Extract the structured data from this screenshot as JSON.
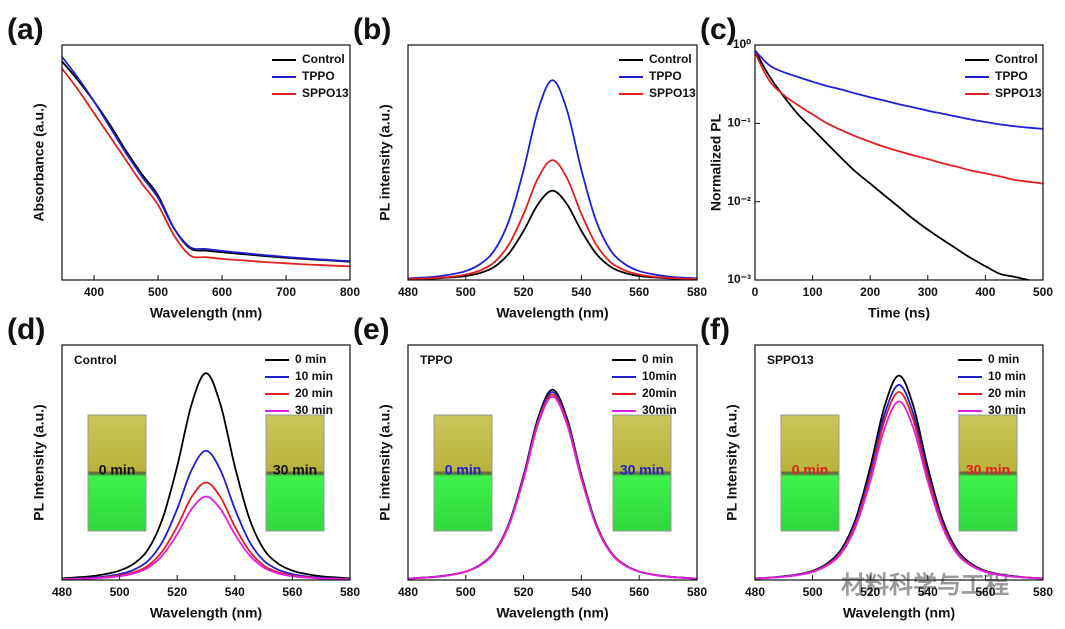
{
  "chart_data": [
    {
      "type": "line",
      "panel_label": "(a)",
      "x_label": "Wavelength (nm)",
      "y_label": "Absorbance (a.u.)",
      "x": [
        350,
        375,
        400,
        425,
        450,
        475,
        500,
        525,
        550,
        575,
        600,
        625,
        650,
        675,
        700,
        725,
        750,
        775,
        800
      ],
      "xlim": [
        350,
        800
      ],
      "xticks": [
        400,
        500,
        600,
        700,
        800
      ],
      "ylim": [
        0,
        1
      ],
      "series": [
        {
          "name": "Control",
          "color": "#000000",
          "values": [
            0.93,
            0.85,
            0.76,
            0.66,
            0.55,
            0.45,
            0.36,
            0.22,
            0.135,
            0.125,
            0.118,
            0.112,
            0.106,
            0.1,
            0.095,
            0.09,
            0.086,
            0.082,
            0.078
          ]
        },
        {
          "name": "TPPO",
          "color": "#1f1fd0",
          "values": [
            0.95,
            0.86,
            0.76,
            0.65,
            0.54,
            0.44,
            0.35,
            0.22,
            0.14,
            0.132,
            0.124,
            0.117,
            0.11,
            0.104,
            0.098,
            0.093,
            0.088,
            0.084,
            0.08
          ]
        },
        {
          "name": "SPPO13",
          "color": "#e02020",
          "values": [
            0.9,
            0.81,
            0.71,
            0.61,
            0.51,
            0.41,
            0.32,
            0.19,
            0.105,
            0.097,
            0.09,
            0.085,
            0.08,
            0.075,
            0.071,
            0.067,
            0.064,
            0.061,
            0.058
          ]
        }
      ]
    },
    {
      "type": "line",
      "panel_label": "(b)",
      "x_label": "Wavelength (nm)",
      "y_label": "PL intensity (a.u.)",
      "x": [
        480,
        485,
        490,
        495,
        500,
        505,
        510,
        515,
        520,
        525,
        530,
        535,
        540,
        545,
        550,
        555,
        560,
        565,
        570,
        575,
        580
      ],
      "xlim": [
        480,
        580
      ],
      "xticks": [
        480,
        500,
        520,
        540,
        560,
        580
      ],
      "ylim": [
        0,
        1
      ],
      "series": [
        {
          "name": "Control",
          "color": "#000000",
          "values": [
            0.003,
            0.005,
            0.007,
            0.011,
            0.017,
            0.03,
            0.057,
            0.114,
            0.209,
            0.323,
            0.38,
            0.323,
            0.209,
            0.114,
            0.057,
            0.03,
            0.017,
            0.011,
            0.007,
            0.005,
            0.003
          ]
        },
        {
          "name": "TPPO",
          "color": "#1f1fd0",
          "values": [
            0.007,
            0.01,
            0.015,
            0.024,
            0.038,
            0.068,
            0.128,
            0.255,
            0.468,
            0.723,
            0.85,
            0.723,
            0.468,
            0.255,
            0.128,
            0.068,
            0.038,
            0.024,
            0.015,
            0.01,
            0.007
          ]
        },
        {
          "name": "SPPO13",
          "color": "#e02020",
          "values": [
            0.004,
            0.006,
            0.009,
            0.014,
            0.023,
            0.041,
            0.077,
            0.153,
            0.281,
            0.434,
            0.51,
            0.434,
            0.281,
            0.153,
            0.077,
            0.041,
            0.023,
            0.014,
            0.009,
            0.006,
            0.004
          ]
        }
      ]
    },
    {
      "type": "line",
      "panel_label": "(c)",
      "x_label": "Time (ns)",
      "y_label": "Normalized PL",
      "log_y": true,
      "x": [
        0,
        25,
        50,
        75,
        100,
        125,
        150,
        175,
        200,
        225,
        250,
        275,
        300,
        325,
        350,
        375,
        400,
        425,
        450,
        475,
        500
      ],
      "xlim": [
        0,
        500
      ],
      "xticks": [
        0,
        100,
        200,
        300,
        400,
        500
      ],
      "ylim": [
        0.001,
        1
      ],
      "yticks": [
        {
          "value": 0.001,
          "label": "10⁻³"
        },
        {
          "value": 0.01,
          "label": "10⁻²"
        },
        {
          "value": 0.1,
          "label": "10⁻¹"
        },
        {
          "value": 1,
          "label": "10⁰"
        }
      ],
      "series": [
        {
          "name": "Control",
          "color": "#000000",
          "values": [
            0.85,
            0.4,
            0.22,
            0.13,
            0.085,
            0.055,
            0.036,
            0.024,
            0.017,
            0.012,
            0.0085,
            0.006,
            0.0044,
            0.0033,
            0.0025,
            0.0019,
            0.0015,
            0.0012,
            0.0011,
            0.001,
            null
          ]
        },
        {
          "name": "TPPO",
          "color": "#1f1fd0",
          "values": [
            0.85,
            0.55,
            0.45,
            0.39,
            0.34,
            0.3,
            0.27,
            0.24,
            0.215,
            0.195,
            0.175,
            0.16,
            0.145,
            0.133,
            0.122,
            0.112,
            0.104,
            0.097,
            0.092,
            0.088,
            0.085
          ]
        },
        {
          "name": "SPPO13",
          "color": "#e02020",
          "values": [
            0.8,
            0.35,
            0.23,
            0.17,
            0.13,
            0.1,
            0.082,
            0.068,
            0.058,
            0.05,
            0.044,
            0.039,
            0.035,
            0.031,
            0.028,
            0.025,
            0.023,
            0.021,
            0.019,
            0.018,
            0.017
          ]
        }
      ]
    },
    {
      "type": "line",
      "panel_label": "(d)",
      "sample": "Control",
      "x_label": "Wavelength (nm)",
      "y_label": "PL Intensity (a.u.)",
      "insets": [
        "0 min",
        "30 min"
      ],
      "inset_label_color": "#111111",
      "x": [
        480,
        485,
        490,
        495,
        500,
        505,
        510,
        515,
        520,
        525,
        530,
        535,
        540,
        545,
        550,
        555,
        560,
        565,
        570,
        575,
        580
      ],
      "xlim": [
        480,
        580
      ],
      "xticks": [
        480,
        500,
        520,
        540,
        560,
        580
      ],
      "ylim": [
        0,
        1
      ],
      "series": [
        {
          "name": "0 min",
          "color": "#000000",
          "values": [
            0.007,
            0.011,
            0.016,
            0.025,
            0.04,
            0.07,
            0.132,
            0.264,
            0.484,
            0.748,
            0.88,
            0.748,
            0.484,
            0.264,
            0.132,
            0.07,
            0.04,
            0.025,
            0.016,
            0.011,
            0.007
          ]
        },
        {
          "name": "10 min",
          "color": "#1f1fd0",
          "values": [
            0.004,
            0.007,
            0.01,
            0.015,
            0.025,
            0.044,
            0.083,
            0.165,
            0.303,
            0.468,
            0.55,
            0.468,
            0.303,
            0.165,
            0.083,
            0.044,
            0.025,
            0.015,
            0.01,
            0.007,
            0.004
          ]
        },
        {
          "name": "20 min",
          "color": "#e02020",
          "values": [
            0.003,
            0.005,
            0.007,
            0.012,
            0.019,
            0.033,
            0.062,
            0.125,
            0.228,
            0.353,
            0.415,
            0.353,
            0.228,
            0.125,
            0.062,
            0.033,
            0.019,
            0.012,
            0.007,
            0.005,
            0.003
          ]
        },
        {
          "name": "30 min",
          "color": "#e020e0",
          "values": [
            0.003,
            0.004,
            0.006,
            0.01,
            0.016,
            0.028,
            0.053,
            0.107,
            0.195,
            0.302,
            0.355,
            0.302,
            0.195,
            0.107,
            0.053,
            0.028,
            0.016,
            0.01,
            0.006,
            0.004,
            0.003
          ]
        }
      ]
    },
    {
      "type": "line",
      "panel_label": "(e)",
      "sample": "TPPO",
      "x_label": "Wavelength (nm)",
      "y_label": "PL intensity (a.u.)",
      "insets": [
        "0 min",
        "30 min"
      ],
      "inset_label_color": "#1f1fd0",
      "x": [
        480,
        485,
        490,
        495,
        500,
        505,
        510,
        515,
        520,
        525,
        530,
        535,
        540,
        545,
        550,
        555,
        560,
        565,
        570,
        575,
        580
      ],
      "xlim": [
        480,
        580
      ],
      "xticks": [
        480,
        500,
        520,
        540,
        560,
        580
      ],
      "ylim": [
        0,
        1
      ],
      "series": [
        {
          "name": "0 min",
          "color": "#000000",
          "values": [
            0.006,
            0.01,
            0.015,
            0.023,
            0.036,
            0.065,
            0.122,
            0.243,
            0.446,
            0.689,
            0.81,
            0.689,
            0.446,
            0.243,
            0.122,
            0.065,
            0.036,
            0.023,
            0.015,
            0.01,
            0.006
          ]
        },
        {
          "name": "10min",
          "color": "#1f1fd0",
          "values": [
            0.006,
            0.01,
            0.014,
            0.022,
            0.036,
            0.064,
            0.12,
            0.24,
            0.44,
            0.68,
            0.8,
            0.68,
            0.44,
            0.24,
            0.12,
            0.064,
            0.036,
            0.022,
            0.014,
            0.01,
            0.006
          ]
        },
        {
          "name": "20min",
          "color": "#e02020",
          "values": [
            0.006,
            0.009,
            0.014,
            0.022,
            0.036,
            0.063,
            0.119,
            0.237,
            0.435,
            0.672,
            0.79,
            0.672,
            0.435,
            0.237,
            0.119,
            0.063,
            0.036,
            0.022,
            0.014,
            0.009,
            0.006
          ]
        },
        {
          "name": "30min",
          "color": "#e020e0",
          "values": [
            0.006,
            0.009,
            0.014,
            0.022,
            0.035,
            0.062,
            0.117,
            0.234,
            0.429,
            0.663,
            0.78,
            0.663,
            0.429,
            0.234,
            0.117,
            0.062,
            0.035,
            0.022,
            0.014,
            0.009,
            0.006
          ]
        }
      ]
    },
    {
      "type": "line",
      "panel_label": "(f)",
      "sample": "SPPO13",
      "x_label": "Wavelength (nm)",
      "y_label": "PL Intensity (a.u.)",
      "insets": [
        "0 min",
        "30 min"
      ],
      "inset_label_color": "#e02020",
      "x": [
        480,
        485,
        490,
        495,
        500,
        505,
        510,
        515,
        520,
        525,
        530,
        535,
        540,
        545,
        550,
        555,
        560,
        565,
        570,
        575,
        580
      ],
      "xlim": [
        480,
        580
      ],
      "xticks": [
        480,
        500,
        520,
        540,
        560,
        580
      ],
      "ylim": [
        0,
        1
      ],
      "series": [
        {
          "name": "0 min",
          "color": "#000000",
          "values": [
            0.007,
            0.01,
            0.016,
            0.024,
            0.039,
            0.07,
            0.131,
            0.261,
            0.479,
            0.74,
            0.87,
            0.74,
            0.479,
            0.261,
            0.131,
            0.07,
            0.039,
            0.024,
            0.016,
            0.01,
            0.007
          ]
        },
        {
          "name": "10 min",
          "color": "#1f1fd0",
          "values": [
            0.007,
            0.01,
            0.015,
            0.023,
            0.037,
            0.066,
            0.125,
            0.249,
            0.457,
            0.706,
            0.83,
            0.706,
            0.457,
            0.249,
            0.125,
            0.066,
            0.037,
            0.023,
            0.015,
            0.01,
            0.007
          ]
        },
        {
          "name": "20 min",
          "color": "#e02020",
          "values": [
            0.006,
            0.01,
            0.014,
            0.022,
            0.036,
            0.064,
            0.12,
            0.24,
            0.44,
            0.68,
            0.8,
            0.68,
            0.44,
            0.24,
            0.12,
            0.064,
            0.036,
            0.022,
            0.014,
            0.01,
            0.006
          ]
        },
        {
          "name": "30 min",
          "color": "#e020e0",
          "values": [
            0.006,
            0.009,
            0.014,
            0.021,
            0.034,
            0.061,
            0.114,
            0.228,
            0.418,
            0.646,
            0.76,
            0.646,
            0.418,
            0.228,
            0.114,
            0.061,
            0.034,
            0.021,
            0.014,
            0.009,
            0.006
          ]
        }
      ]
    }
  ],
  "watermark": "材料科学与工程"
}
